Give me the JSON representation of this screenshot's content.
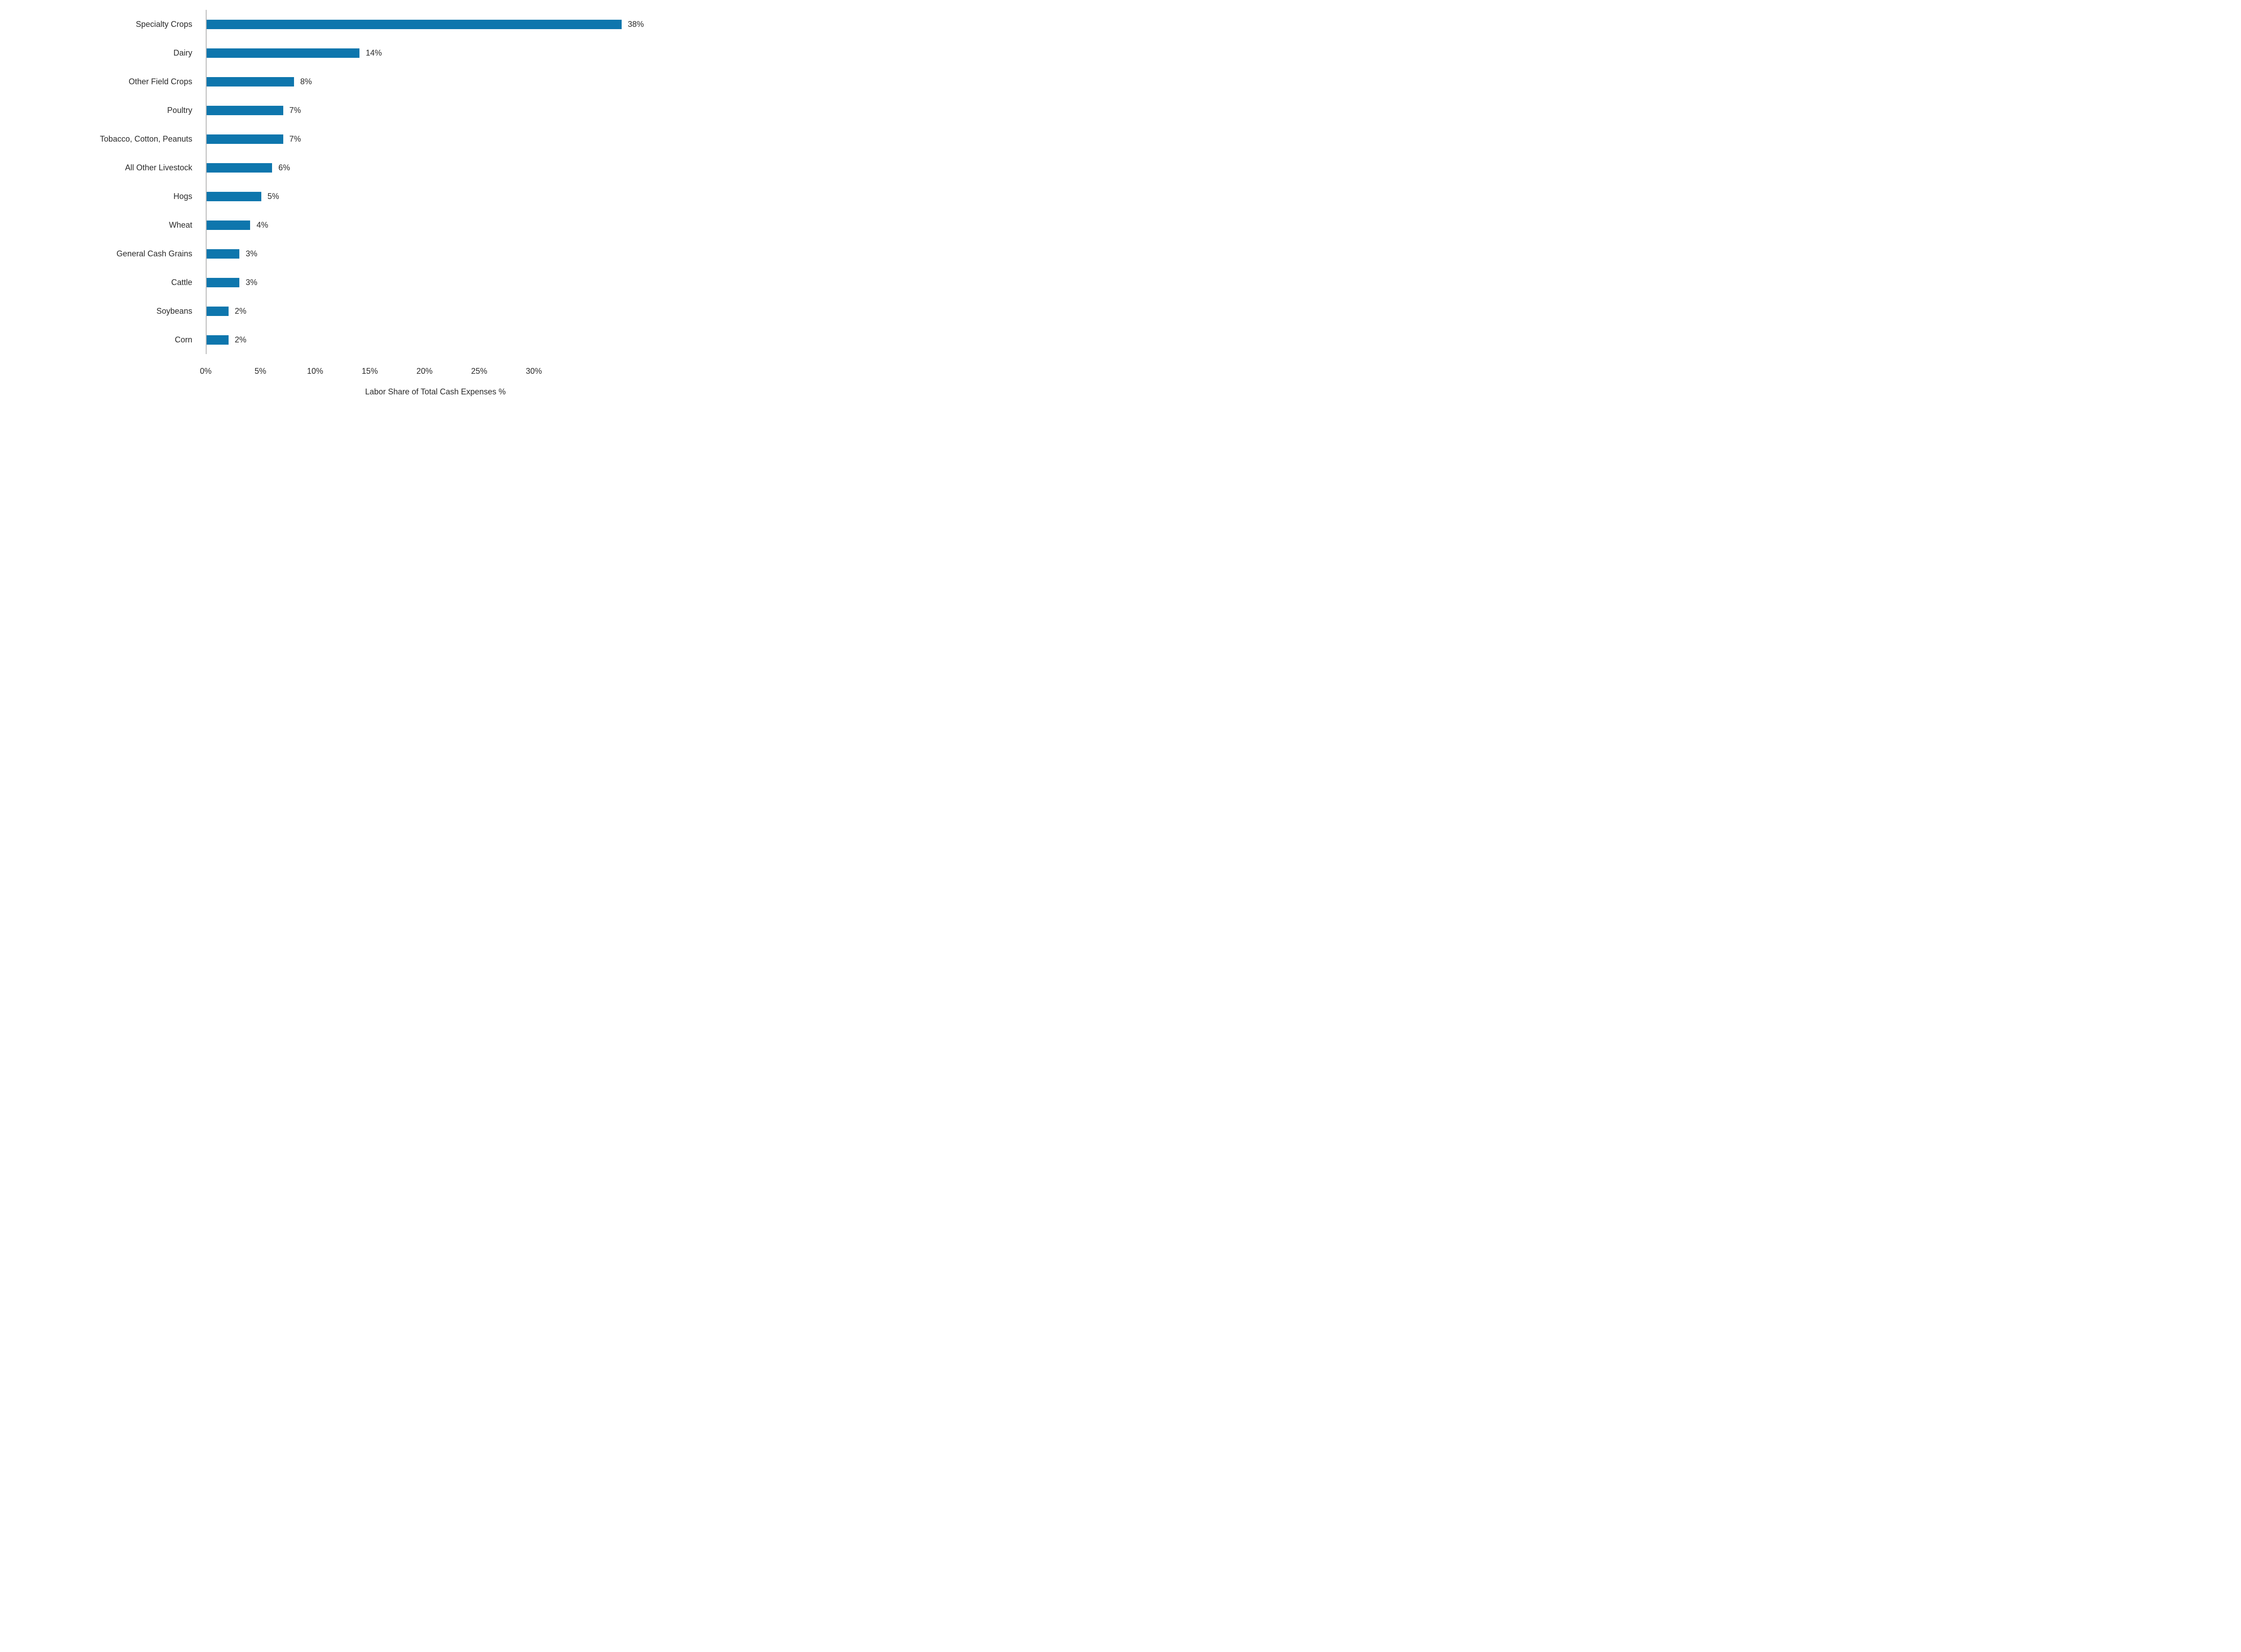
{
  "chart_data": {
    "type": "bar",
    "orientation": "horizontal",
    "categories": [
      "Specialty Crops",
      "Dairy",
      "Other Field Crops",
      "Poultry",
      "Tobacco, Cotton, Peanuts",
      "All Other Livestock",
      "Hogs",
      "Wheat",
      "General Cash Grains",
      "Cattle",
      "Soybeans",
      "Corn"
    ],
    "values": [
      38,
      14,
      8,
      7,
      7,
      6,
      5,
      4,
      3,
      3,
      2,
      2
    ],
    "value_labels": [
      "38%",
      "14%",
      "8%",
      "7%",
      "7%",
      "6%",
      "5%",
      "4%",
      "3%",
      "3%",
      "2%",
      "2%"
    ],
    "xlabel": "Labor Share of Total Cash Expenses %",
    "x_ticks": [
      0,
      5,
      10,
      15,
      20,
      25,
      30
    ],
    "x_tick_labels": [
      "0%",
      "5%",
      "10%",
      "15%",
      "20%",
      "25%",
      "30%"
    ],
    "xlim": [
      0,
      42
    ],
    "grid": false,
    "legend": "none",
    "colors": {
      "bar": "#0e76ad",
      "axis_line": "#b9b9b9",
      "text": "#2b2b2b",
      "background": "#ffffff"
    }
  }
}
